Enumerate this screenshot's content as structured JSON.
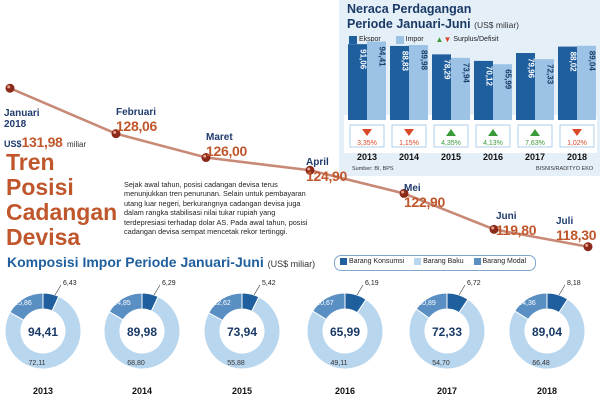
{
  "headline": {
    "line1": "Tren",
    "line2": "Posisi",
    "line3": "Cadangan",
    "line4": "Devisa"
  },
  "description": "Sejak awal tahun, posisi cadangan devisa terus menunjukkan tren penurunan. Selain untuk pembayaran utang luar negeri, berkurangnya cadangan devisa juga dalam rangka stabilisasi nilai tukar rupiah yang terdepresiasi terhadap dolar AS. Pada awal tahun, posisi cadangan devisa sempat mencetak rekor tertinggi.",
  "reserves": {
    "first_point": {
      "month_line1": "Januari",
      "month_line2": "2018",
      "prefix": "US$",
      "value": "131,98",
      "suffix": "miliar"
    },
    "chart_data": {
      "type": "line",
      "categories": [
        "Januari 2018",
        "Februari",
        "Maret",
        "April",
        "Mei",
        "Juni",
        "Juli"
      ],
      "values": [
        131.98,
        128.06,
        126.0,
        124.9,
        122.9,
        119.8,
        118.3
      ],
      "labels": [
        "Januari",
        "Februari",
        "Maret",
        "April",
        "Mei",
        "Juni",
        "Juli"
      ],
      "value_labels": [
        "131,98",
        "128,06",
        "126,00",
        "124,90",
        "122,90",
        "119,80",
        "118,30"
      ],
      "color": "#c0572c"
    }
  },
  "trade": {
    "title_line1": "Neraca Perdagangan",
    "title_line2": "Periode Januari-Juni",
    "unit": "(US$ miliar)",
    "legend": {
      "export": "Ekspor",
      "import": "Impor",
      "surplus": "Surplus/Defisit"
    },
    "source": "Sumber: BI, BPS",
    "credit": "BISNIS/RADITYO EKO",
    "chart_data": {
      "type": "bar",
      "categories": [
        "2013",
        "2014",
        "2015",
        "2016",
        "2017",
        "2018"
      ],
      "series": [
        {
          "name": "Ekspor",
          "values": [
            91.06,
            88.83,
            78.29,
            70.12,
            79.96,
            88.02
          ],
          "labels": [
            "91,06",
            "88,83",
            "78,29",
            "70,12",
            "79,96",
            "88,02"
          ],
          "color": "#1f5f9e"
        },
        {
          "name": "Impor",
          "values": [
            94.41,
            89.98,
            73.94,
            65.99,
            72.33,
            89.04
          ],
          "labels": [
            "94,41",
            "89,98",
            "73,94",
            "65,99",
            "72,33",
            "89,04"
          ],
          "color": "#9cc3e6"
        }
      ],
      "surplus_deficit": {
        "labels": [
          "3,35%",
          "1,15%",
          "4,35%",
          "4,13%",
          "7,63%",
          "1,02%"
        ],
        "direction": [
          "down",
          "down",
          "up",
          "up",
          "up",
          "down"
        ],
        "colors": {
          "down": "#d9472b",
          "up": "#3a9a3a"
        }
      },
      "ylim": [
        0,
        100
      ]
    }
  },
  "imports": {
    "title": "Komposisi Impor Periode Januari-Juni",
    "unit": "(US$ miliar)",
    "legend": [
      "Barang Konsumsi",
      "Barang Baku",
      "Barang Modal"
    ],
    "colors": {
      "konsumsi": "#1f5f9e",
      "baku": "#b9d6ef",
      "modal": "#5a8fc4"
    },
    "chart_data": {
      "type": "pie",
      "years": [
        "2013",
        "2014",
        "2015",
        "2016",
        "2017",
        "2018"
      ],
      "totals": [
        "94,41",
        "89,98",
        "73,94",
        "65,99",
        "72,33",
        "89,04"
      ],
      "consumption": [
        6.43,
        6.29,
        5.42,
        6.19,
        6.72,
        8.18
      ],
      "raw": [
        72.11,
        68.8,
        55.88,
        49.11,
        54.7,
        66.48
      ],
      "capital": [
        15.86,
        14.85,
        12.62,
        10.67,
        10.89,
        14.36
      ],
      "consumption_labels": [
        "6,43",
        "6,29",
        "5,42",
        "6,19",
        "6,72",
        "8,18"
      ],
      "raw_labels": [
        "72,11",
        "68,80",
        "55,88",
        "49,11",
        "54,70",
        "66,48"
      ],
      "capital_labels": [
        "15,86",
        "14,85",
        "12,62",
        "10,67",
        "10,89",
        "14,36"
      ]
    }
  }
}
